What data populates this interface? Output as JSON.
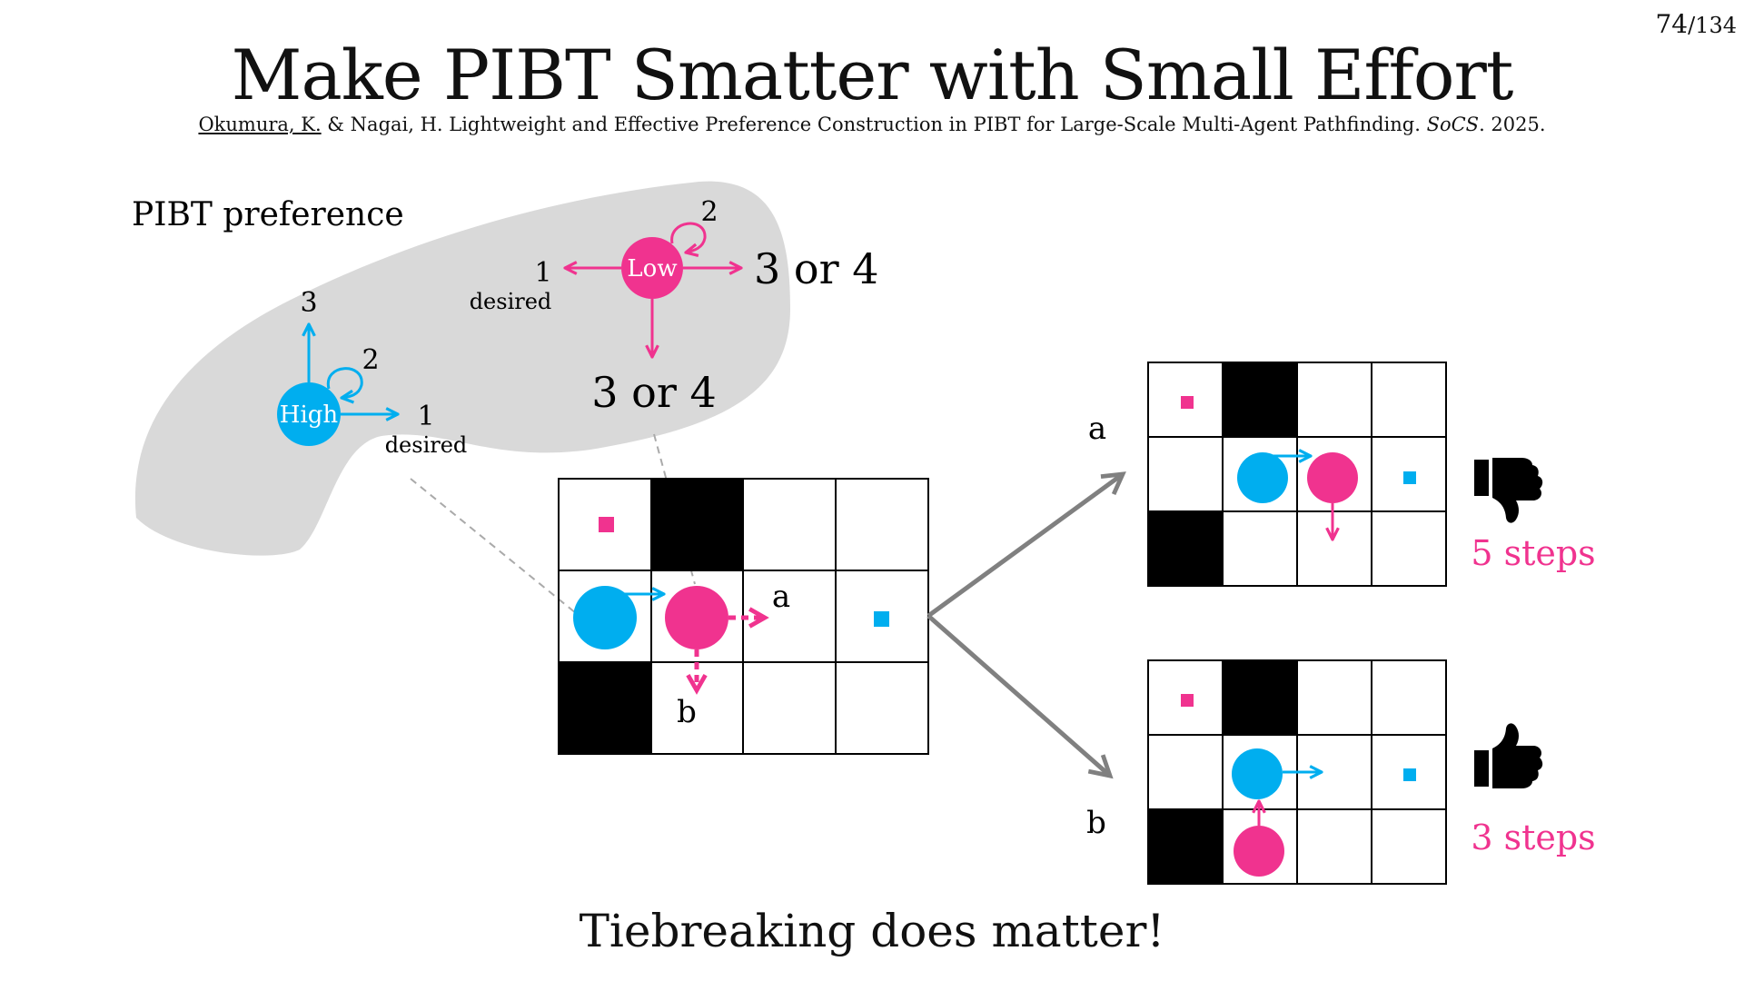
{
  "page": {
    "current": "74",
    "total": "/134"
  },
  "title": "Make PIBT Smatter with Small Effort",
  "reference": {
    "author_link": "Okumura, K.",
    "text": " & Nagai, H. Lightweight and Effective Preference Construction in PIBT for Large-Scale Multi-Agent Pathfinding. ",
    "venue": "SoCS",
    "year": ". 2025."
  },
  "preference": {
    "heading": "PIBT preference",
    "high_agent": {
      "label": "High",
      "rank_up": "3",
      "rank_stay": "2",
      "rank_right": "1",
      "rank_right_note": "desired"
    },
    "low_agent": {
      "label": "Low",
      "rank_stay": "2",
      "rank_left": "1",
      "rank_left_note": "desired",
      "rank_right": "3 or 4",
      "rank_down": "3 or 4"
    }
  },
  "labels": {
    "option_a": "a",
    "option_b": "b",
    "outcome_a": "a",
    "outcome_b": "b"
  },
  "outcomes": {
    "a_steps": "5 steps",
    "b_steps": "3 steps"
  },
  "icons": {
    "a_icon": "thumbs-down-icon",
    "b_icon": "thumbs-up-icon"
  },
  "colors": {
    "high": "#00aeef",
    "low": "#f0338f",
    "blob": "#d9d9d9",
    "arrow_gray": "#808080",
    "obstacle": "#000000"
  },
  "footer": "Tiebreaking does matter!"
}
